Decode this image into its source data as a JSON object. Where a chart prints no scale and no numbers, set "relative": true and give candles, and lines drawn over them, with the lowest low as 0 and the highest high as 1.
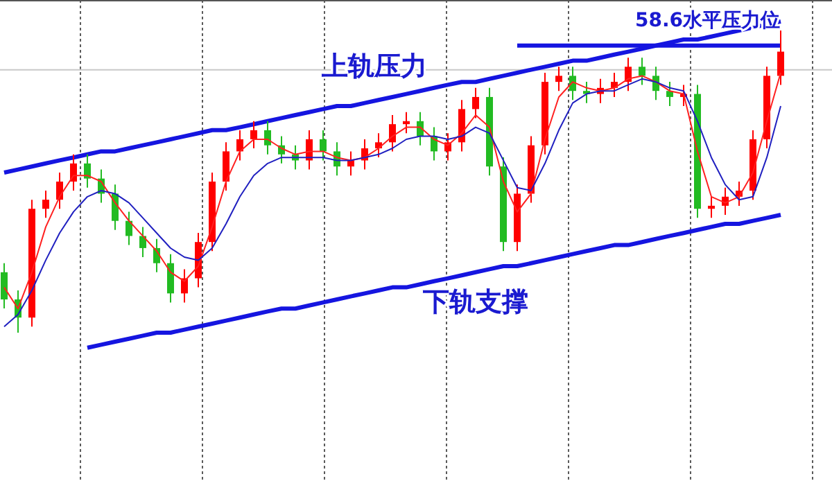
{
  "chart_data": {
    "type": "candlestick",
    "relative": true,
    "grid": true,
    "categories": [
      null,
      null,
      null,
      null,
      null,
      null,
      null,
      null,
      null,
      null,
      null,
      null,
      null,
      null,
      null,
      null,
      null,
      null,
      null,
      null,
      null,
      null,
      null,
      null,
      null,
      null,
      null,
      null,
      null,
      null,
      null,
      null,
      null,
      null,
      null,
      null,
      null,
      null,
      null,
      null,
      null,
      null,
      null,
      null,
      null,
      null,
      null,
      null,
      null,
      null,
      null,
      null,
      null,
      null,
      null,
      null,
      null
    ],
    "ohlc": [
      [
        0.2,
        0.23,
        0.08,
        0.11
      ],
      [
        0.11,
        0.14,
        0.0,
        0.05
      ],
      [
        0.05,
        0.44,
        0.02,
        0.41
      ],
      [
        0.41,
        0.47,
        0.38,
        0.44
      ],
      [
        0.44,
        0.53,
        0.41,
        0.5
      ],
      [
        0.5,
        0.59,
        0.47,
        0.56
      ],
      [
        0.56,
        0.59,
        0.48,
        0.51
      ],
      [
        0.51,
        0.54,
        0.43,
        0.46
      ],
      [
        0.46,
        0.49,
        0.34,
        0.37
      ],
      [
        0.37,
        0.4,
        0.29,
        0.32
      ],
      [
        0.32,
        0.35,
        0.25,
        0.28
      ],
      [
        0.28,
        0.31,
        0.2,
        0.23
      ],
      [
        0.23,
        0.26,
        0.1,
        0.13
      ],
      [
        0.13,
        0.21,
        0.1,
        0.18
      ],
      [
        0.18,
        0.33,
        0.15,
        0.3
      ],
      [
        0.3,
        0.53,
        0.27,
        0.5
      ],
      [
        0.5,
        0.63,
        0.47,
        0.6
      ],
      [
        0.6,
        0.67,
        0.57,
        0.64
      ],
      [
        0.64,
        0.7,
        0.61,
        0.67
      ],
      [
        0.67,
        0.7,
        0.59,
        0.62
      ],
      [
        0.62,
        0.65,
        0.56,
        0.59
      ],
      [
        0.59,
        0.62,
        0.54,
        0.57
      ],
      [
        0.57,
        0.67,
        0.54,
        0.64
      ],
      [
        0.64,
        0.67,
        0.57,
        0.6
      ],
      [
        0.6,
        0.63,
        0.52,
        0.55
      ],
      [
        0.55,
        0.6,
        0.52,
        0.57
      ],
      [
        0.57,
        0.64,
        0.54,
        0.61
      ],
      [
        0.61,
        0.66,
        0.58,
        0.63
      ],
      [
        0.63,
        0.72,
        0.6,
        0.69
      ],
      [
        0.69,
        0.73,
        0.66,
        0.7
      ],
      [
        0.7,
        0.73,
        0.62,
        0.65
      ],
      [
        0.65,
        0.68,
        0.57,
        0.6
      ],
      [
        0.6,
        0.66,
        0.57,
        0.63
      ],
      [
        0.63,
        0.77,
        0.6,
        0.74
      ],
      [
        0.74,
        0.81,
        0.71,
        0.78
      ],
      [
        0.78,
        0.81,
        0.52,
        0.55
      ],
      [
        0.55,
        0.58,
        0.27,
        0.3
      ],
      [
        0.3,
        0.49,
        0.27,
        0.46
      ],
      [
        0.46,
        0.65,
        0.43,
        0.62
      ],
      [
        0.62,
        0.86,
        0.59,
        0.83
      ],
      [
        0.83,
        0.88,
        0.8,
        0.85
      ],
      [
        0.85,
        0.88,
        0.77,
        0.8
      ],
      [
        0.8,
        0.83,
        0.76,
        0.79
      ],
      [
        0.79,
        0.84,
        0.76,
        0.81
      ],
      [
        0.81,
        0.86,
        0.78,
        0.83
      ],
      [
        0.83,
        0.91,
        0.8,
        0.88
      ],
      [
        0.88,
        0.91,
        0.82,
        0.85
      ],
      [
        0.85,
        0.88,
        0.77,
        0.8
      ],
      [
        0.8,
        0.83,
        0.75,
        0.78
      ],
      [
        0.78,
        0.82,
        0.75,
        0.79
      ],
      [
        0.79,
        0.82,
        0.38,
        0.41
      ],
      [
        0.41,
        0.45,
        0.38,
        0.42
      ],
      [
        0.42,
        0.48,
        0.39,
        0.45
      ],
      [
        0.45,
        0.5,
        0.42,
        0.47
      ],
      [
        0.47,
        0.67,
        0.44,
        0.64
      ],
      [
        0.64,
        0.88,
        0.61,
        0.85
      ],
      [
        0.85,
        1.0,
        0.82,
        0.93
      ]
    ],
    "colors": [
      "#22bb22",
      "#22bb22",
      "#ff0000",
      "#ff0000",
      "#ff0000",
      "#ff0000",
      "#22bb22",
      "#22bb22",
      "#22bb22",
      "#22bb22",
      "#22bb22",
      "#22bb22",
      "#22bb22",
      "#ff0000",
      "#ff0000",
      "#ff0000",
      "#ff0000",
      "#ff0000",
      "#ff0000",
      "#22bb22",
      "#22bb22",
      "#22bb22",
      "#ff0000",
      "#22bb22",
      "#22bb22",
      "#ff0000",
      "#ff0000",
      "#ff0000",
      "#ff0000",
      "#ff0000",
      "#22bb22",
      "#22bb22",
      "#ff0000",
      "#ff0000",
      "#ff0000",
      "#22bb22",
      "#22bb22",
      "#ff0000",
      "#ff0000",
      "#ff0000",
      "#ff0000",
      "#22bb22",
      "#22bb22",
      "#ff0000",
      "#ff0000",
      "#ff0000",
      "#22bb22",
      "#22bb22",
      "#22bb22",
      "#ff0000",
      "#22bb22",
      "#ff0000",
      "#ff0000",
      "#ff0000",
      "#ff0000",
      "#ff0000",
      "#ff0000"
    ],
    "series": [
      {
        "type": "line",
        "color": "#ff2020",
        "values": [
          0.15,
          0.08,
          0.2,
          0.35,
          0.45,
          0.52,
          0.52,
          0.5,
          0.43,
          0.37,
          0.32,
          0.27,
          0.2,
          0.17,
          0.22,
          0.35,
          0.5,
          0.6,
          0.64,
          0.64,
          0.61,
          0.59,
          0.6,
          0.6,
          0.58,
          0.57,
          0.58,
          0.61,
          0.65,
          0.68,
          0.68,
          0.64,
          0.62,
          0.66,
          0.72,
          0.68,
          0.5,
          0.4,
          0.46,
          0.64,
          0.78,
          0.83,
          0.81,
          0.8,
          0.81,
          0.84,
          0.85,
          0.83,
          0.8,
          0.79,
          0.6,
          0.45,
          0.43,
          0.45,
          0.53,
          0.7,
          0.86
        ]
      },
      {
        "type": "line",
        "color": "#2020c0",
        "values": [
          0.02,
          0.06,
          0.14,
          0.24,
          0.33,
          0.4,
          0.45,
          0.47,
          0.46,
          0.43,
          0.38,
          0.33,
          0.28,
          0.25,
          0.24,
          0.28,
          0.36,
          0.45,
          0.52,
          0.56,
          0.58,
          0.58,
          0.58,
          0.58,
          0.57,
          0.57,
          0.58,
          0.59,
          0.61,
          0.64,
          0.65,
          0.65,
          0.64,
          0.65,
          0.68,
          0.66,
          0.57,
          0.48,
          0.47,
          0.56,
          0.67,
          0.76,
          0.79,
          0.8,
          0.8,
          0.82,
          0.84,
          0.83,
          0.81,
          0.8,
          0.7,
          0.58,
          0.49,
          0.44,
          0.45,
          0.58,
          0.75
        ]
      },
      {
        "type": "line",
        "color": "#1515e0",
        "values": [
          0.53,
          0.54,
          0.55,
          0.56,
          0.57,
          0.58,
          0.59,
          0.6,
          0.6,
          0.61,
          0.62,
          0.63,
          0.64,
          0.65,
          0.66,
          0.67,
          0.67,
          0.68,
          0.69,
          0.7,
          0.71,
          0.72,
          0.73,
          0.74,
          0.75,
          0.75,
          0.76,
          0.77,
          0.78,
          0.79,
          0.8,
          0.81,
          0.82,
          0.83,
          0.83,
          0.84,
          0.85,
          0.86,
          0.87,
          0.88,
          0.89,
          0.9,
          0.9,
          0.91,
          0.92,
          0.93,
          0.94,
          0.95,
          0.96,
          0.97,
          0.97,
          0.98,
          0.99,
          1.0,
          1.01,
          1.02,
          1.03
        ]
      },
      {
        "type": "line",
        "color": "#1515e0",
        "values": [
          null,
          null,
          null,
          null,
          null,
          null,
          -0.05,
          -0.04,
          -0.03,
          -0.02,
          -0.01,
          0.0,
          0.0,
          0.01,
          0.02,
          0.03,
          0.04,
          0.05,
          0.06,
          0.07,
          0.08,
          0.08,
          0.09,
          0.1,
          0.11,
          0.12,
          0.13,
          0.14,
          0.15,
          0.15,
          0.16,
          0.17,
          0.18,
          0.19,
          0.2,
          0.21,
          0.22,
          0.22,
          0.23,
          0.24,
          0.25,
          0.26,
          0.27,
          0.28,
          0.29,
          0.29,
          0.3,
          0.31,
          0.32,
          0.33,
          0.34,
          0.35,
          0.36,
          0.36,
          0.37,
          0.38,
          0.39
        ]
      },
      {
        "type": "line",
        "color": "#1515e0",
        "values": [
          null,
          null,
          null,
          null,
          null,
          null,
          null,
          null,
          null,
          null,
          null,
          null,
          null,
          null,
          null,
          null,
          null,
          null,
          null,
          null,
          null,
          null,
          null,
          null,
          null,
          null,
          null,
          null,
          null,
          null,
          null,
          null,
          null,
          null,
          null,
          null,
          null,
          0.95,
          0.95,
          0.95,
          0.95,
          0.95,
          0.95,
          0.95,
          0.95,
          0.95,
          0.95,
          0.95,
          0.95,
          0.95,
          0.95,
          0.95,
          0.95,
          0.95,
          0.95,
          0.95,
          0.95
        ]
      }
    ],
    "ref_lines": [
      {
        "axis": "y",
        "value": 0.87,
        "color": "#c8c8c8"
      }
    ],
    "annotations": [
      "上轨压力",
      "下轨支撑",
      "58.6水平压力位"
    ]
  }
}
